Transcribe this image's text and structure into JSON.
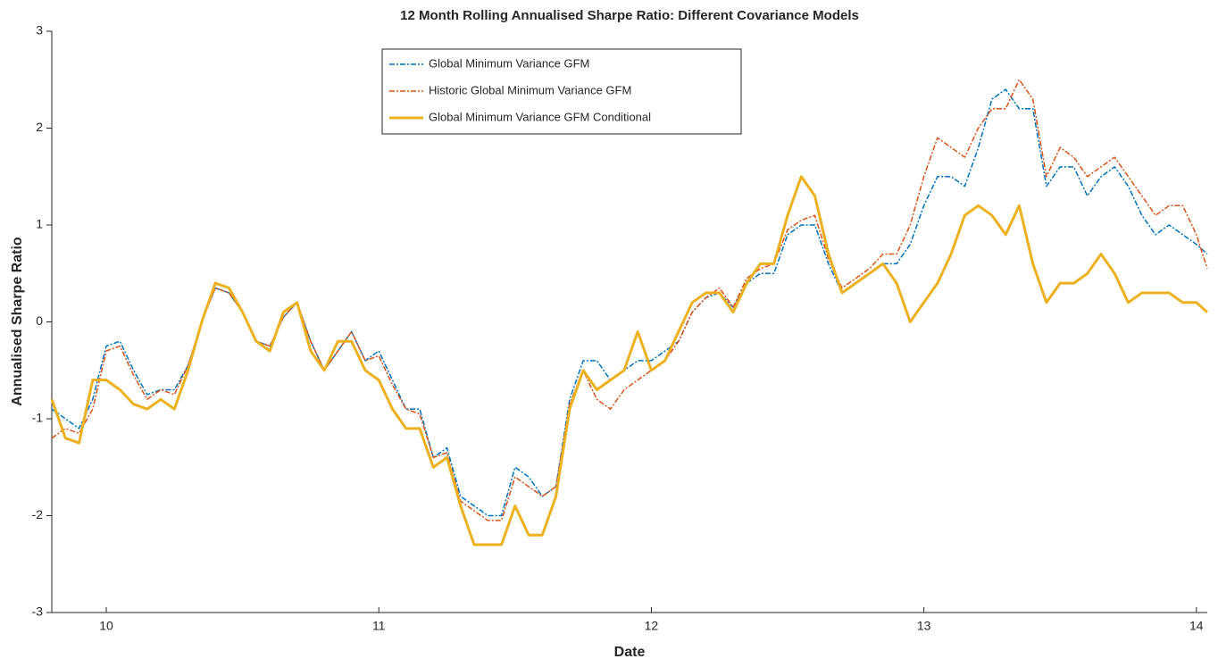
{
  "chart_data": {
    "type": "line",
    "title": "12 Month Rolling Annualised Sharpe Ratio: Different Covariance Models",
    "x_label": "Date",
    "y_label": "Annualised Sharpe Ratio",
    "x": [
      9.8,
      9.85,
      9.9,
      9.95,
      10.0,
      10.05,
      10.1,
      10.15,
      10.2,
      10.25,
      10.3,
      10.35,
      10.4,
      10.45,
      10.5,
      10.55,
      10.6,
      10.65,
      10.7,
      10.75,
      10.8,
      10.85,
      10.9,
      10.95,
      11.0,
      11.05,
      11.1,
      11.15,
      11.2,
      11.25,
      11.3,
      11.35,
      11.4,
      11.45,
      11.5,
      11.55,
      11.6,
      11.65,
      11.7,
      11.75,
      11.8,
      11.85,
      11.9,
      11.95,
      12.0,
      12.05,
      12.1,
      12.15,
      12.2,
      12.25,
      12.3,
      12.35,
      12.4,
      12.45,
      12.5,
      12.55,
      12.6,
      12.65,
      12.7,
      12.75,
      12.8,
      12.85,
      12.9,
      12.95,
      13.0,
      13.05,
      13.1,
      13.15,
      13.2,
      13.25,
      13.3,
      13.35,
      13.4,
      13.45,
      13.5,
      13.55,
      13.6,
      13.65,
      13.7,
      13.75,
      13.8,
      13.85,
      13.9,
      13.95,
      14.0,
      14.04
    ],
    "series": [
      {
        "name": "Global Minimum Variance GFM",
        "color": "#0072bd",
        "style": "dash-dot",
        "width": 1.5,
        "values": [
          -0.9,
          -1.0,
          -1.1,
          -0.8,
          -0.25,
          -0.2,
          -0.5,
          -0.75,
          -0.7,
          -0.7,
          -0.45,
          0.0,
          0.35,
          0.3,
          0.1,
          -0.2,
          -0.25,
          0.05,
          0.2,
          -0.2,
          -0.5,
          -0.3,
          -0.1,
          -0.4,
          -0.3,
          -0.6,
          -0.9,
          -0.9,
          -1.4,
          -1.3,
          -1.8,
          -1.9,
          -2.0,
          -2.0,
          -1.5,
          -1.6,
          -1.8,
          -1.7,
          -0.8,
          -0.4,
          -0.4,
          -0.6,
          -0.5,
          -0.4,
          -0.4,
          -0.3,
          -0.2,
          0.1,
          0.25,
          0.3,
          0.15,
          0.4,
          0.5,
          0.5,
          0.9,
          1.0,
          1.0,
          0.6,
          0.3,
          0.4,
          0.5,
          0.6,
          0.6,
          0.8,
          1.2,
          1.5,
          1.5,
          1.4,
          1.8,
          2.3,
          2.4,
          2.2,
          2.2,
          1.4,
          1.6,
          1.6,
          1.3,
          1.5,
          1.6,
          1.4,
          1.1,
          0.9,
          1.0,
          0.9,
          0.8,
          0.7
        ]
      },
      {
        "name": "Historic Global Minimum Variance GFM",
        "color": "#d95319",
        "style": "dash-dot",
        "width": 1.5,
        "values": [
          -1.2,
          -1.1,
          -1.15,
          -0.9,
          -0.3,
          -0.25,
          -0.55,
          -0.8,
          -0.7,
          -0.75,
          -0.45,
          0.0,
          0.35,
          0.3,
          0.1,
          -0.2,
          -0.25,
          0.05,
          0.2,
          -0.2,
          -0.5,
          -0.3,
          -0.1,
          -0.4,
          -0.35,
          -0.65,
          -0.9,
          -0.95,
          -1.4,
          -1.35,
          -1.85,
          -1.95,
          -2.05,
          -2.05,
          -1.6,
          -1.7,
          -1.8,
          -1.7,
          -0.85,
          -0.5,
          -0.8,
          -0.9,
          -0.7,
          -0.6,
          -0.5,
          -0.4,
          -0.2,
          0.1,
          0.25,
          0.35,
          0.15,
          0.45,
          0.55,
          0.6,
          0.95,
          1.05,
          1.1,
          0.65,
          0.35,
          0.45,
          0.55,
          0.7,
          0.7,
          1.0,
          1.5,
          1.9,
          1.8,
          1.7,
          2.0,
          2.2,
          2.2,
          2.5,
          2.3,
          1.5,
          1.8,
          1.7,
          1.5,
          1.6,
          1.7,
          1.5,
          1.3,
          1.1,
          1.2,
          1.2,
          0.9,
          0.55
        ]
      },
      {
        "name": "Global Minimum Variance GFM Conditional",
        "color": "#edb120",
        "style": "solid",
        "width": 3,
        "values": [
          -0.8,
          -1.2,
          -1.25,
          -0.6,
          -0.6,
          -0.7,
          -0.85,
          -0.9,
          -0.8,
          -0.9,
          -0.5,
          0.0,
          0.4,
          0.35,
          0.1,
          -0.2,
          -0.3,
          0.1,
          0.2,
          -0.3,
          -0.5,
          -0.2,
          -0.2,
          -0.5,
          -0.6,
          -0.9,
          -1.1,
          -1.1,
          -1.5,
          -1.4,
          -1.9,
          -2.3,
          -2.3,
          -2.3,
          -1.9,
          -2.2,
          -2.2,
          -1.8,
          -0.9,
          -0.5,
          -0.7,
          -0.6,
          -0.5,
          -0.1,
          -0.5,
          -0.4,
          -0.1,
          0.2,
          0.3,
          0.3,
          0.1,
          0.4,
          0.6,
          0.6,
          1.1,
          1.5,
          1.3,
          0.7,
          0.3,
          0.4,
          0.5,
          0.6,
          0.4,
          0.0,
          0.2,
          0.4,
          0.7,
          1.1,
          1.2,
          1.1,
          0.9,
          1.2,
          0.6,
          0.2,
          0.4,
          0.4,
          0.5,
          0.7,
          0.5,
          0.2,
          0.3,
          0.3,
          0.3,
          0.2,
          0.2,
          0.1
        ]
      }
    ],
    "xlim": [
      9.8,
      14.04
    ],
    "ylim": [
      -3,
      3
    ],
    "xticks": [
      10,
      11,
      12,
      13,
      14
    ],
    "yticks": [
      -3,
      -2,
      -1,
      0,
      1,
      2,
      3
    ],
    "legend": "top-center"
  }
}
